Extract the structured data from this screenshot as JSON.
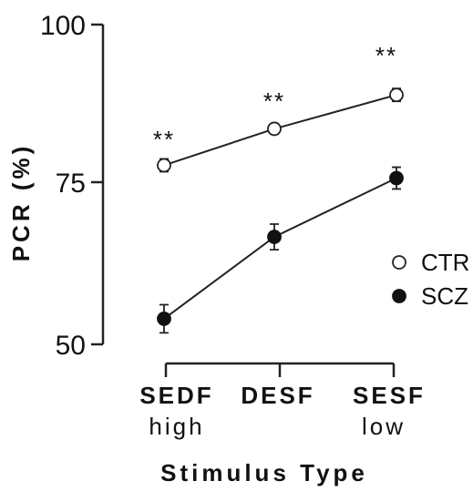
{
  "chart_data": {
    "type": "line",
    "title": "",
    "xlabel": "Stimulus Type",
    "ylabel": "PCR (%)",
    "ylim": [
      50,
      100
    ],
    "yticks": [
      50,
      75,
      100
    ],
    "categories": [
      "SEDF",
      "DESF",
      "SESF"
    ],
    "category_sublabels": [
      "high",
      "",
      "low"
    ],
    "series": [
      {
        "name": "CTR",
        "marker": "open-circle",
        "values": [
          78,
          83.7,
          89
        ],
        "error": [
          1,
          0.8,
          1
        ]
      },
      {
        "name": "SCZ",
        "marker": "filled-circle",
        "values": [
          54,
          66.8,
          76
        ],
        "error": [
          2.2,
          2,
          1.7
        ]
      }
    ],
    "annotations": [
      "**",
      "**",
      "**"
    ],
    "legend_position": "right",
    "grid": false,
    "colors": {
      "line": "#222222",
      "open_fill": "#ffffff",
      "filled_fill": "#111111"
    }
  }
}
